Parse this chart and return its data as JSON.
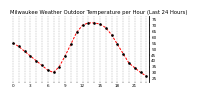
{
  "title": "Milwaukee Weather Outdoor Temperature per Hour (Last 24 Hours)",
  "hours": [
    0,
    1,
    2,
    3,
    4,
    5,
    6,
    7,
    8,
    9,
    10,
    11,
    12,
    13,
    14,
    15,
    16,
    17,
    18,
    19,
    20,
    21,
    22,
    23
  ],
  "temps": [
    55,
    52,
    48,
    44,
    40,
    36,
    32,
    30,
    35,
    44,
    54,
    64,
    70,
    72,
    72,
    71,
    68,
    62,
    54,
    46,
    38,
    34,
    30,
    27
  ],
  "ylim": [
    22,
    78
  ],
  "ytick_values": [
    25,
    30,
    35,
    40,
    45,
    50,
    55,
    60,
    65,
    70,
    75
  ],
  "ytick_labels": [
    "25",
    "30",
    "35",
    "40",
    "45",
    "50",
    "55",
    "60",
    "65",
    "70",
    "75"
  ],
  "line_color": "#ff0000",
  "marker_color": "#000000",
  "bg_color": "#ffffff",
  "grid_color": "#888888",
  "title_color": "#000000",
  "title_fontsize": 3.8,
  "tick_fontsize": 3.0
}
